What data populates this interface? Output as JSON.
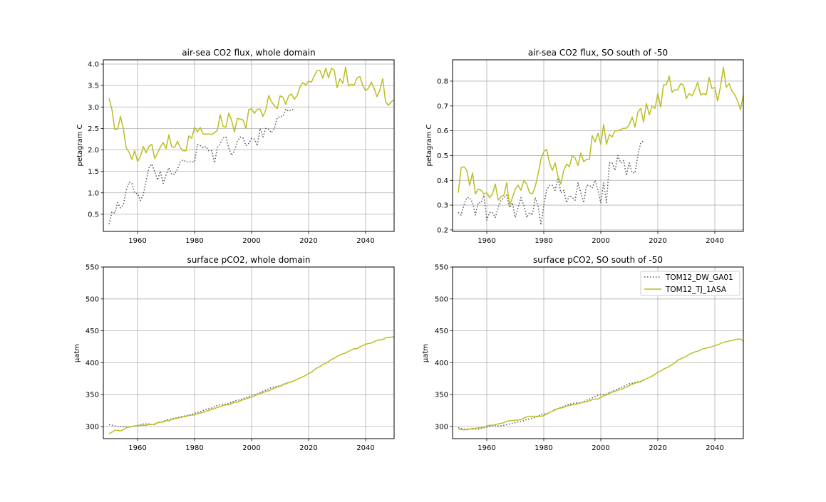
{
  "colors": {
    "dotted_series": "#555555",
    "solid_series": "#bcbd22"
  },
  "legend": {
    "entries": [
      {
        "label": "TOM12_DW_GA01",
        "style": "dotted"
      },
      {
        "label": "TOM12_TJ_1ASA",
        "style": "solid"
      }
    ],
    "placement": "upper-right of bottom-right panel"
  },
  "chart_data": [
    {
      "id": "flux-whole",
      "type": "line",
      "title": "air-sea CO2 flux, whole domain",
      "xlabel": "",
      "ylabel": "petagram C",
      "xlim": [
        1948,
        2050
      ],
      "ylim": [
        0.1,
        4.1
      ],
      "xticks": [
        1960,
        1980,
        2000,
        2020,
        2040
      ],
      "yticks": [
        0.5,
        1.0,
        1.5,
        2.0,
        2.5,
        3.0,
        3.5,
        4.0
      ],
      "ytick_labels": [
        "0.5",
        "1.0",
        "1.5",
        "2.0",
        "2.5",
        "3.0",
        "3.5",
        "4.0"
      ],
      "grid": true,
      "series": [
        {
          "name": "TOM12_DW_GA01",
          "style": "dotted",
          "x_start": 1950,
          "values": [
            0.27,
            0.55,
            0.53,
            0.77,
            0.65,
            0.72,
            1.05,
            1.25,
            1.22,
            1.0,
            0.98,
            0.82,
            0.95,
            1.28,
            1.58,
            1.67,
            1.5,
            1.3,
            1.5,
            1.22,
            1.42,
            1.58,
            1.43,
            1.43,
            1.55,
            1.72,
            1.77,
            1.72,
            1.72,
            1.72,
            1.72,
            2.13,
            2.1,
            2.05,
            2.08,
            1.98,
            1.98,
            1.7,
            2.05,
            2.15,
            2.28,
            2.3,
            2.05,
            1.87,
            1.98,
            2.2,
            2.3,
            2.28,
            2.1,
            2.15,
            2.27,
            2.25,
            2.1,
            2.5,
            2.3,
            2.5,
            2.48,
            2.4,
            2.5,
            2.75,
            2.78,
            2.78,
            2.95,
            2.9,
            2.93,
            2.95
          ]
        },
        {
          "name": "TOM12_TJ_1ASA",
          "style": "solid",
          "x_start": 1950,
          "values": [
            3.2,
            2.95,
            2.48,
            2.48,
            2.78,
            2.5,
            2.05,
            1.95,
            1.78,
            1.98,
            1.73,
            1.85,
            2.08,
            1.93,
            2.08,
            2.13,
            1.8,
            1.92,
            2.07,
            2.17,
            2.03,
            2.35,
            2.07,
            2.06,
            2.2,
            2.05,
            1.98,
            1.98,
            2.33,
            2.27,
            2.53,
            2.42,
            2.52,
            2.37,
            2.37,
            2.37,
            2.36,
            2.4,
            2.46,
            2.82,
            2.55,
            2.53,
            2.86,
            2.68,
            2.42,
            2.73,
            2.72,
            2.7,
            2.5,
            2.94,
            2.96,
            2.85,
            2.95,
            2.95,
            2.78,
            2.93,
            3.27,
            3.12,
            3.03,
            2.96,
            3.26,
            3.23,
            3.06,
            3.26,
            3.3,
            3.18,
            3.27,
            3.47,
            3.57,
            3.51,
            3.6,
            3.58,
            3.73,
            3.85,
            3.85,
            3.67,
            3.9,
            3.68,
            3.9,
            3.86,
            3.45,
            3.66,
            3.55,
            3.93,
            3.49,
            3.53,
            3.51,
            3.68,
            3.71,
            3.5,
            3.38,
            3.44,
            3.58,
            3.43,
            3.24,
            3.4,
            3.66,
            3.12,
            3.04,
            3.12,
            3.17
          ]
        }
      ]
    },
    {
      "id": "flux-so",
      "type": "line",
      "title": "air-sea CO2 flux, SO south of -50",
      "xlabel": "",
      "ylabel": "petagram C",
      "xlim": [
        1948,
        2050
      ],
      "ylim": [
        0.194,
        0.886
      ],
      "xticks": [
        1960,
        1980,
        2000,
        2020,
        2040
      ],
      "yticks": [
        0.2,
        0.3,
        0.4,
        0.5,
        0.6,
        0.7,
        0.8
      ],
      "ytick_labels": [
        "0.2",
        "0.3",
        "0.4",
        "0.5",
        "0.6",
        "0.7",
        "0.8"
      ],
      "grid": true,
      "series": [
        {
          "name": "TOM12_DW_GA01",
          "style": "dotted",
          "x_start": 1950,
          "values": [
            0.27,
            0.26,
            0.3,
            0.33,
            0.33,
            0.31,
            0.26,
            0.31,
            0.31,
            0.34,
            0.24,
            0.27,
            0.27,
            0.25,
            0.29,
            0.32,
            0.33,
            0.34,
            0.29,
            0.31,
            0.25,
            0.29,
            0.33,
            0.3,
            0.25,
            0.27,
            0.26,
            0.33,
            0.3,
            0.22,
            0.3,
            0.36,
            0.38,
            0.38,
            0.36,
            0.41,
            0.35,
            0.36,
            0.31,
            0.34,
            0.33,
            0.32,
            0.39,
            0.35,
            0.31,
            0.38,
            0.38,
            0.37,
            0.4,
            0.36,
            0.31,
            0.39,
            0.31,
            0.47,
            0.47,
            0.44,
            0.5,
            0.47,
            0.48,
            0.42,
            0.47,
            0.43,
            0.43,
            0.5,
            0.55,
            0.56
          ]
        },
        {
          "name": "TOM12_TJ_1ASA",
          "style": "solid",
          "x_start": 1950,
          "values": [
            0.35,
            0.45,
            0.455,
            0.44,
            0.38,
            0.43,
            0.345,
            0.365,
            0.36,
            0.345,
            0.35,
            0.33,
            0.345,
            0.385,
            0.32,
            0.335,
            0.34,
            0.39,
            0.3,
            0.33,
            0.365,
            0.38,
            0.36,
            0.4,
            0.385,
            0.35,
            0.345,
            0.375,
            0.425,
            0.485,
            0.515,
            0.525,
            0.47,
            0.44,
            0.47,
            0.415,
            0.385,
            0.44,
            0.465,
            0.455,
            0.5,
            0.49,
            0.46,
            0.51,
            0.475,
            0.485,
            0.485,
            0.58,
            0.555,
            0.59,
            0.545,
            0.625,
            0.545,
            0.585,
            0.575,
            0.6,
            0.6,
            0.605,
            0.61,
            0.61,
            0.625,
            0.655,
            0.615,
            0.675,
            0.69,
            0.635,
            0.71,
            0.665,
            0.7,
            0.69,
            0.75,
            0.695,
            0.785,
            0.785,
            0.82,
            0.755,
            0.765,
            0.765,
            0.79,
            0.785,
            0.73,
            0.75,
            0.74,
            0.765,
            0.795,
            0.745,
            0.75,
            0.745,
            0.815,
            0.77,
            0.775,
            0.72,
            0.78,
            0.855,
            0.775,
            0.79,
            0.76,
            0.745,
            0.72,
            0.685,
            0.745
          ]
        }
      ]
    },
    {
      "id": "pco2-whole",
      "type": "line",
      "title": "surface pCO2, whole domain",
      "xlabel": "",
      "ylabel": "µatm",
      "xlim": [
        1948,
        2050
      ],
      "ylim": [
        281,
        550
      ],
      "xticks": [
        1960,
        1980,
        2000,
        2020,
        2040
      ],
      "yticks": [
        300,
        350,
        400,
        450,
        500,
        550
      ],
      "ytick_labels": [
        "300",
        "350",
        "400",
        "450",
        "500",
        "550"
      ],
      "grid": true,
      "series": [
        {
          "name": "TOM12_DW_GA01",
          "style": "dotted",
          "x_start": 1950,
          "values": [
            303,
            302,
            301,
            300,
            300,
            300,
            299,
            299,
            300,
            301,
            302,
            303,
            304,
            304,
            304,
            303,
            303,
            306,
            307,
            308,
            310,
            311,
            312,
            313,
            314,
            315,
            316,
            317,
            318,
            319,
            321,
            322,
            323,
            325,
            327,
            328,
            329,
            331,
            333,
            334,
            335,
            335,
            336,
            338,
            340,
            341,
            342,
            344,
            345,
            347,
            349,
            350,
            351,
            353,
            355,
            357,
            359,
            361,
            362,
            363,
            364,
            366,
            368,
            369,
            370,
            372
          ]
        },
        {
          "name": "TOM12_TJ_1ASA",
          "style": "solid",
          "x_start": 1950,
          "values": [
            289,
            291,
            294,
            294,
            293,
            295,
            298,
            299,
            300,
            301,
            301,
            302,
            302,
            302,
            303,
            303,
            304,
            306,
            307,
            307,
            309,
            309,
            311,
            312,
            313,
            314,
            315,
            316,
            317,
            318,
            318,
            320,
            321,
            322,
            324,
            325,
            327,
            328,
            330,
            331,
            333,
            334,
            334,
            336,
            338,
            338,
            340,
            342,
            343,
            345,
            346,
            348,
            350,
            352,
            353,
            355,
            356,
            358,
            360,
            362,
            363,
            365,
            367,
            369,
            370,
            372,
            374,
            376,
            378,
            380,
            383,
            385,
            389,
            392,
            394,
            397,
            399,
            402,
            405,
            407,
            410,
            412,
            414,
            415,
            418,
            420,
            422,
            422,
            425,
            427,
            429,
            430,
            431,
            433,
            435,
            436,
            436,
            439,
            440,
            440,
            441
          ]
        }
      ]
    },
    {
      "id": "pco2-so",
      "type": "line",
      "title": "surface pCO2, SO south of -50",
      "xlabel": "",
      "ylabel": "µatm",
      "xlim": [
        1948,
        2050
      ],
      "ylim": [
        281,
        550
      ],
      "xticks": [
        1960,
        1980,
        2000,
        2020,
        2040
      ],
      "yticks": [
        300,
        350,
        400,
        450,
        500,
        550
      ],
      "ytick_labels": [
        "300",
        "350",
        "400",
        "450",
        "500",
        "550"
      ],
      "grid": true,
      "series": [
        {
          "name": "TOM12_DW_GA01",
          "style": "dotted",
          "x_start": 1950,
          "values": [
            298,
            297,
            296,
            296,
            296,
            296,
            296,
            296,
            297,
            298,
            299,
            300,
            301,
            301,
            301,
            301,
            302,
            303,
            304,
            305,
            306,
            307,
            308,
            309,
            311,
            312,
            313,
            314,
            316,
            319,
            320,
            319,
            322,
            324,
            326,
            328,
            330,
            331,
            333,
            335,
            336,
            337,
            337,
            337,
            339,
            341,
            343,
            345,
            347,
            349,
            350,
            350,
            351,
            353,
            355,
            357,
            359,
            361,
            363,
            365,
            367,
            368,
            369,
            370,
            370,
            372
          ]
        },
        {
          "name": "TOM12_TJ_1ASA",
          "style": "solid",
          "x_start": 1950,
          "values": [
            297,
            295,
            295,
            295,
            296,
            297,
            297,
            298,
            298,
            299,
            301,
            302,
            302,
            303,
            304,
            305,
            306,
            308,
            309,
            309,
            310,
            310,
            311,
            313,
            315,
            316,
            316,
            316,
            316,
            316,
            317,
            320,
            322,
            324,
            327,
            328,
            329,
            330,
            332,
            333,
            334,
            334,
            336,
            337,
            338,
            339,
            340,
            342,
            343,
            343,
            346,
            348,
            350,
            352,
            354,
            355,
            357,
            358,
            360,
            362,
            364,
            366,
            368,
            369,
            371,
            373,
            375,
            377,
            379,
            382,
            385,
            387,
            390,
            392,
            394,
            397,
            400,
            404,
            406,
            408,
            410,
            413,
            415,
            417,
            418,
            420,
            422,
            423,
            424,
            425,
            427,
            428,
            430,
            432,
            433,
            434,
            435,
            436,
            437,
            437,
            434
          ]
        }
      ]
    }
  ]
}
